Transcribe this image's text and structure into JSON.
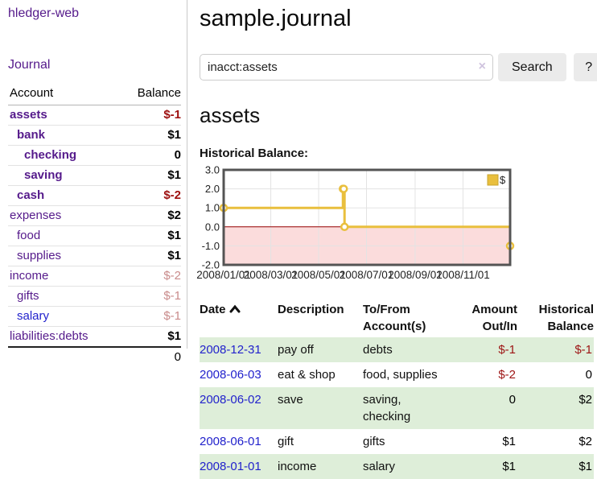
{
  "app": {
    "brand": "hledger-web",
    "nav_journal": "Journal"
  },
  "sidebar": {
    "columns": {
      "account": "Account",
      "balance": "Balance"
    },
    "accounts": [
      {
        "name": "assets",
        "depth": 1,
        "bold": true,
        "balance": "$-1",
        "balance_style": "neg"
      },
      {
        "name": "bank",
        "depth": 2,
        "bold": true,
        "balance": "$1",
        "balance_style": "pos"
      },
      {
        "name": "checking",
        "depth": 3,
        "bold": true,
        "balance": "0",
        "balance_style": "pos"
      },
      {
        "name": "saving",
        "depth": 3,
        "bold": true,
        "balance": "$1",
        "balance_style": "pos"
      },
      {
        "name": "cash",
        "depth": 2,
        "bold": true,
        "balance": "$-2",
        "balance_style": "neg"
      },
      {
        "name": "expenses",
        "depth": 1,
        "bold": false,
        "balance": "$2",
        "balance_style": "pos"
      },
      {
        "name": "food",
        "depth": 2,
        "bold": false,
        "balance": "$1",
        "balance_style": "pos"
      },
      {
        "name": "supplies",
        "depth": 2,
        "bold": false,
        "balance": "$1",
        "balance_style": "pos"
      },
      {
        "name": "income",
        "depth": 1,
        "bold": false,
        "balance": "$-2",
        "balance_style": "negfaint"
      },
      {
        "name": "gifts",
        "depth": 2,
        "bold": false,
        "balance": "$-1",
        "balance_style": "negfaint"
      },
      {
        "name": "salary",
        "depth": 2,
        "bold": false,
        "link_state": "unvisited",
        "balance": "$-1",
        "balance_style": "negfaint"
      },
      {
        "name": "liabilities:debts",
        "depth": 1,
        "bold": false,
        "balance": "$1",
        "balance_style": "pos"
      }
    ],
    "total": "0"
  },
  "header": {
    "title": "sample.journal"
  },
  "search": {
    "value": "inacct:assets",
    "clear_icon": "×",
    "button_label": "Search",
    "help_label": "?"
  },
  "account_page": {
    "heading": "assets",
    "chart_label": "Historical Balance:"
  },
  "chart_data": {
    "type": "line",
    "step": true,
    "title": "Historical Balance",
    "series": [
      {
        "name": "$",
        "color": "#e9bf3d",
        "points": [
          [
            "2008-01-01",
            1
          ],
          [
            "2008-06-01",
            2
          ],
          [
            "2008-06-02",
            2
          ],
          [
            "2008-06-03",
            0
          ],
          [
            "2008-12-31",
            -1
          ]
        ]
      }
    ],
    "x_range": [
      "2008-01-01",
      "2008-12-31"
    ],
    "ylim": [
      -2,
      3
    ],
    "y_ticks": [
      {
        "label": "3.0",
        "value": 3
      },
      {
        "label": "2.0",
        "value": 2
      },
      {
        "label": "1.0",
        "value": 1
      },
      {
        "label": "0.0",
        "value": 0
      },
      {
        "label": "-1.0",
        "value": -1
      },
      {
        "label": "-2.0",
        "value": -2
      }
    ],
    "x_ticks": [
      {
        "label": "2008/01/01",
        "date": "2008-01-01"
      },
      {
        "label": "2008/03/01",
        "date": "2008-03-01"
      },
      {
        "label": "2008/05/01",
        "date": "2008-05-01"
      },
      {
        "label": "2008/07/01",
        "date": "2008-07-01"
      },
      {
        "label": "2008/09/01",
        "date": "2008-09-01"
      },
      {
        "label": "2008/11/01",
        "date": "2008-11-01"
      }
    ],
    "grid": true,
    "legend_position": "top-right",
    "negative_fill": "#fbdcdc",
    "zero_line_color": "#990000",
    "border_color": "#545454",
    "grid_color": "#e3e3e3"
  },
  "register": {
    "columns": [
      {
        "line1": "Date",
        "line2": "",
        "align": "left",
        "sorted": "asc"
      },
      {
        "line1": "Description",
        "line2": "",
        "align": "left"
      },
      {
        "line1": "To/From",
        "line2": "Account(s)",
        "align": "left"
      },
      {
        "line1": "Amount",
        "line2": "Out/In",
        "align": "right"
      },
      {
        "line1": "Historical",
        "line2": "Balance",
        "align": "right"
      }
    ],
    "rows": [
      {
        "date": "2008-12-31",
        "description": "pay off",
        "accounts": "debts",
        "amount": "$-1",
        "amount_style": "neg",
        "balance": "$-1",
        "balance_style": "neg",
        "striped": true
      },
      {
        "date": "2008-06-03",
        "description": "eat & shop",
        "accounts": "food, supplies",
        "amount": "$-2",
        "amount_style": "neg",
        "balance": "0",
        "balance_style": "pos",
        "striped": false
      },
      {
        "date": "2008-06-02",
        "description": "save",
        "accounts": "saving, checking",
        "amount": "0",
        "amount_style": "pos",
        "balance": "$2",
        "balance_style": "pos",
        "striped": true
      },
      {
        "date": "2008-06-01",
        "description": "gift",
        "accounts": "gifts",
        "amount": "$1",
        "amount_style": "pos",
        "balance": "$2",
        "balance_style": "pos",
        "striped": false
      },
      {
        "date": "2008-01-01",
        "description": "income",
        "accounts": "salary",
        "amount": "$1",
        "amount_style": "pos",
        "balance": "$1",
        "balance_style": "pos",
        "striped": true
      }
    ]
  }
}
